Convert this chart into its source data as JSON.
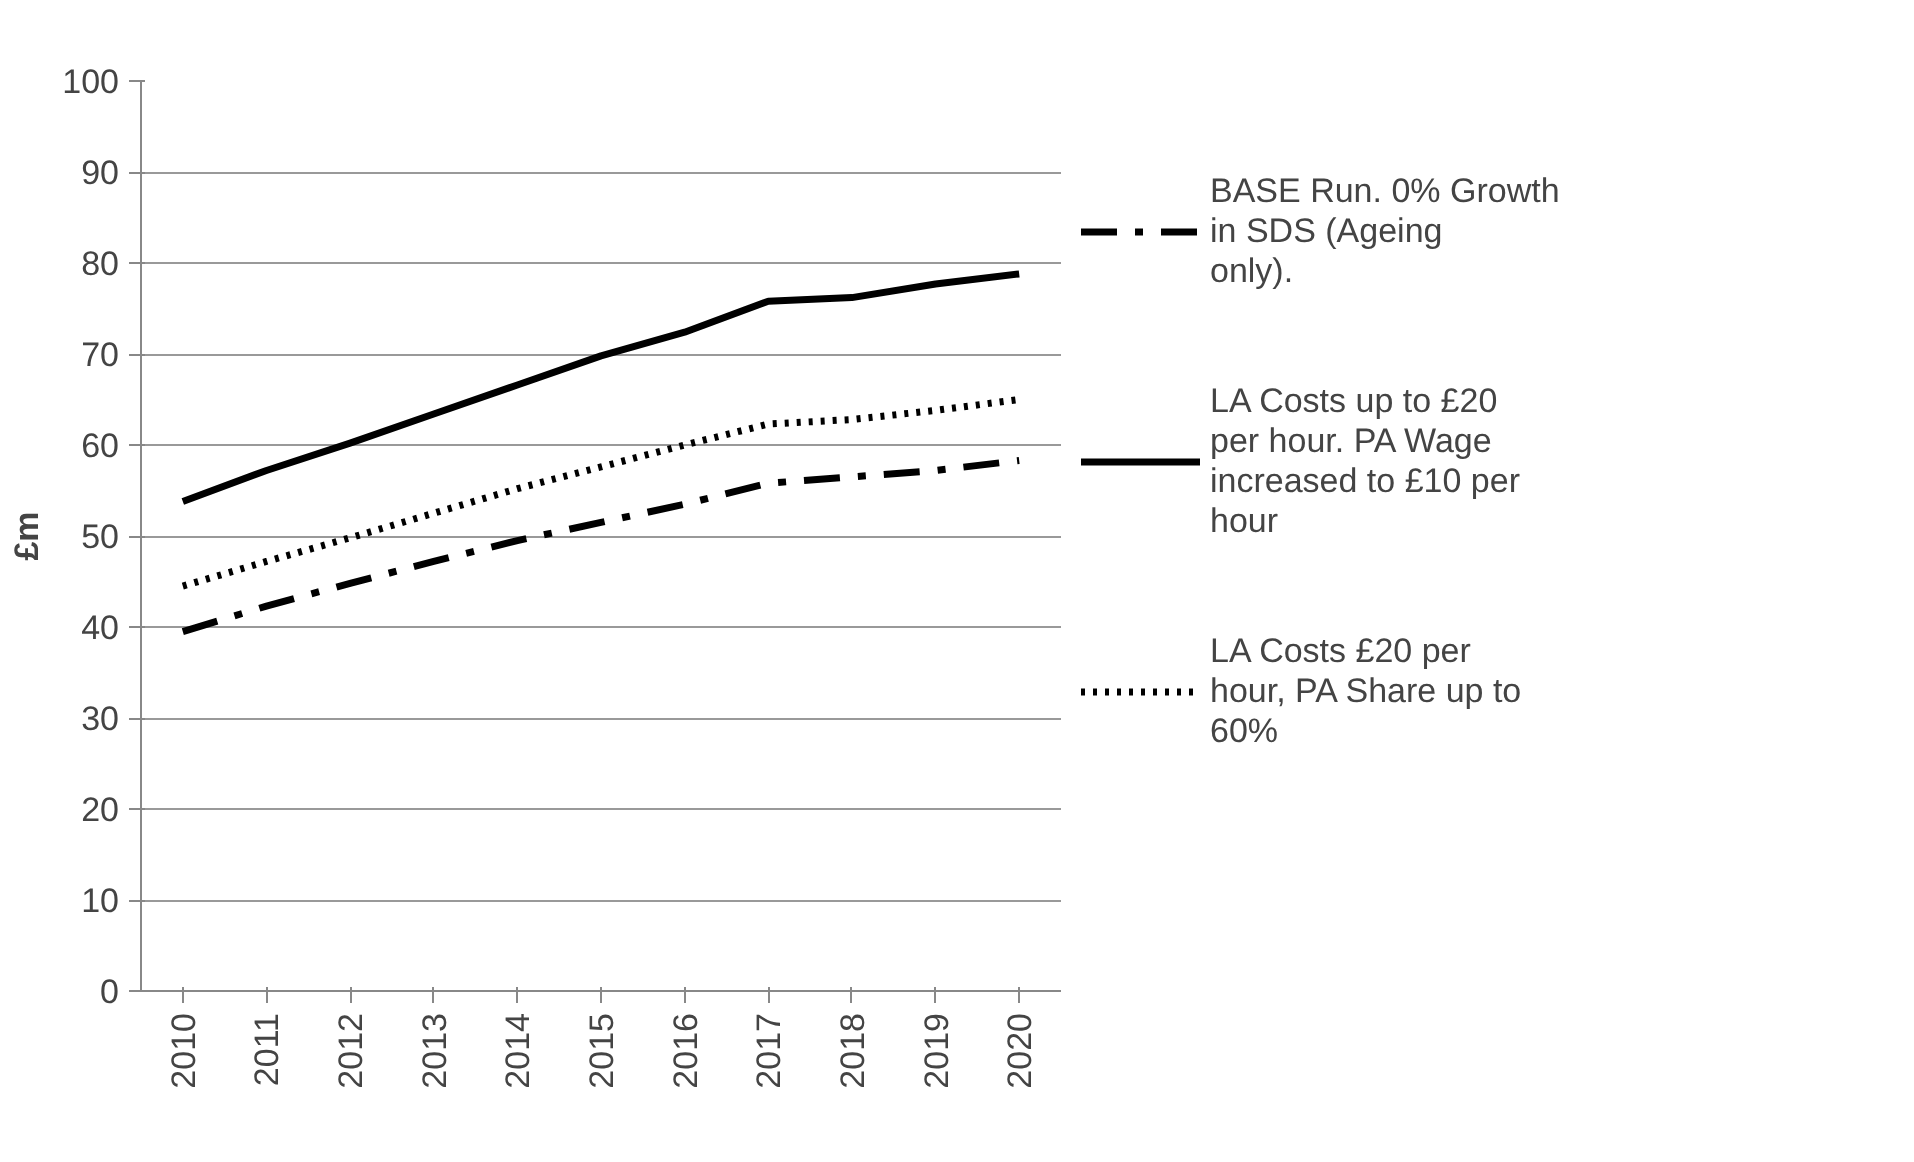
{
  "chart_data": {
    "type": "line",
    "ylabel": "£m",
    "categories": [
      "2010",
      "2011",
      "2012",
      "2013",
      "2014",
      "2015",
      "2016",
      "2017",
      "2018",
      "2019",
      "2020"
    ],
    "series": [
      {
        "name": "BASE Run. 0% Growth in SDS (Ageing only).",
        "color": "#000000",
        "line_style": "dashdot",
        "values": [
          39.5,
          42.3,
          44.8,
          47.2,
          49.5,
          51.5,
          53.5,
          55.8,
          56.5,
          57.2,
          58.3
        ]
      },
      {
        "name": "LA Costs up to £20 per hour. PA Wage increased to £10 per hour",
        "color": "#000000",
        "line_style": "solid",
        "values": [
          53.8,
          57.2,
          60.2,
          63.4,
          66.6,
          69.8,
          72.4,
          75.8,
          76.2,
          77.7,
          78.8
        ]
      },
      {
        "name": "LA Costs £20 per hour, PA Share up to 60%",
        "color": "#000000",
        "line_style": "dotted",
        "values": [
          44.5,
          47.2,
          49.8,
          52.5,
          55.2,
          57.6,
          60.0,
          62.3,
          62.8,
          63.8,
          65.0
        ]
      }
    ],
    "ylim": [
      0,
      100
    ],
    "yticks": [
      0,
      10,
      20,
      30,
      40,
      50,
      60,
      70,
      80,
      90,
      100
    ],
    "grid": "y",
    "legend": "right"
  }
}
